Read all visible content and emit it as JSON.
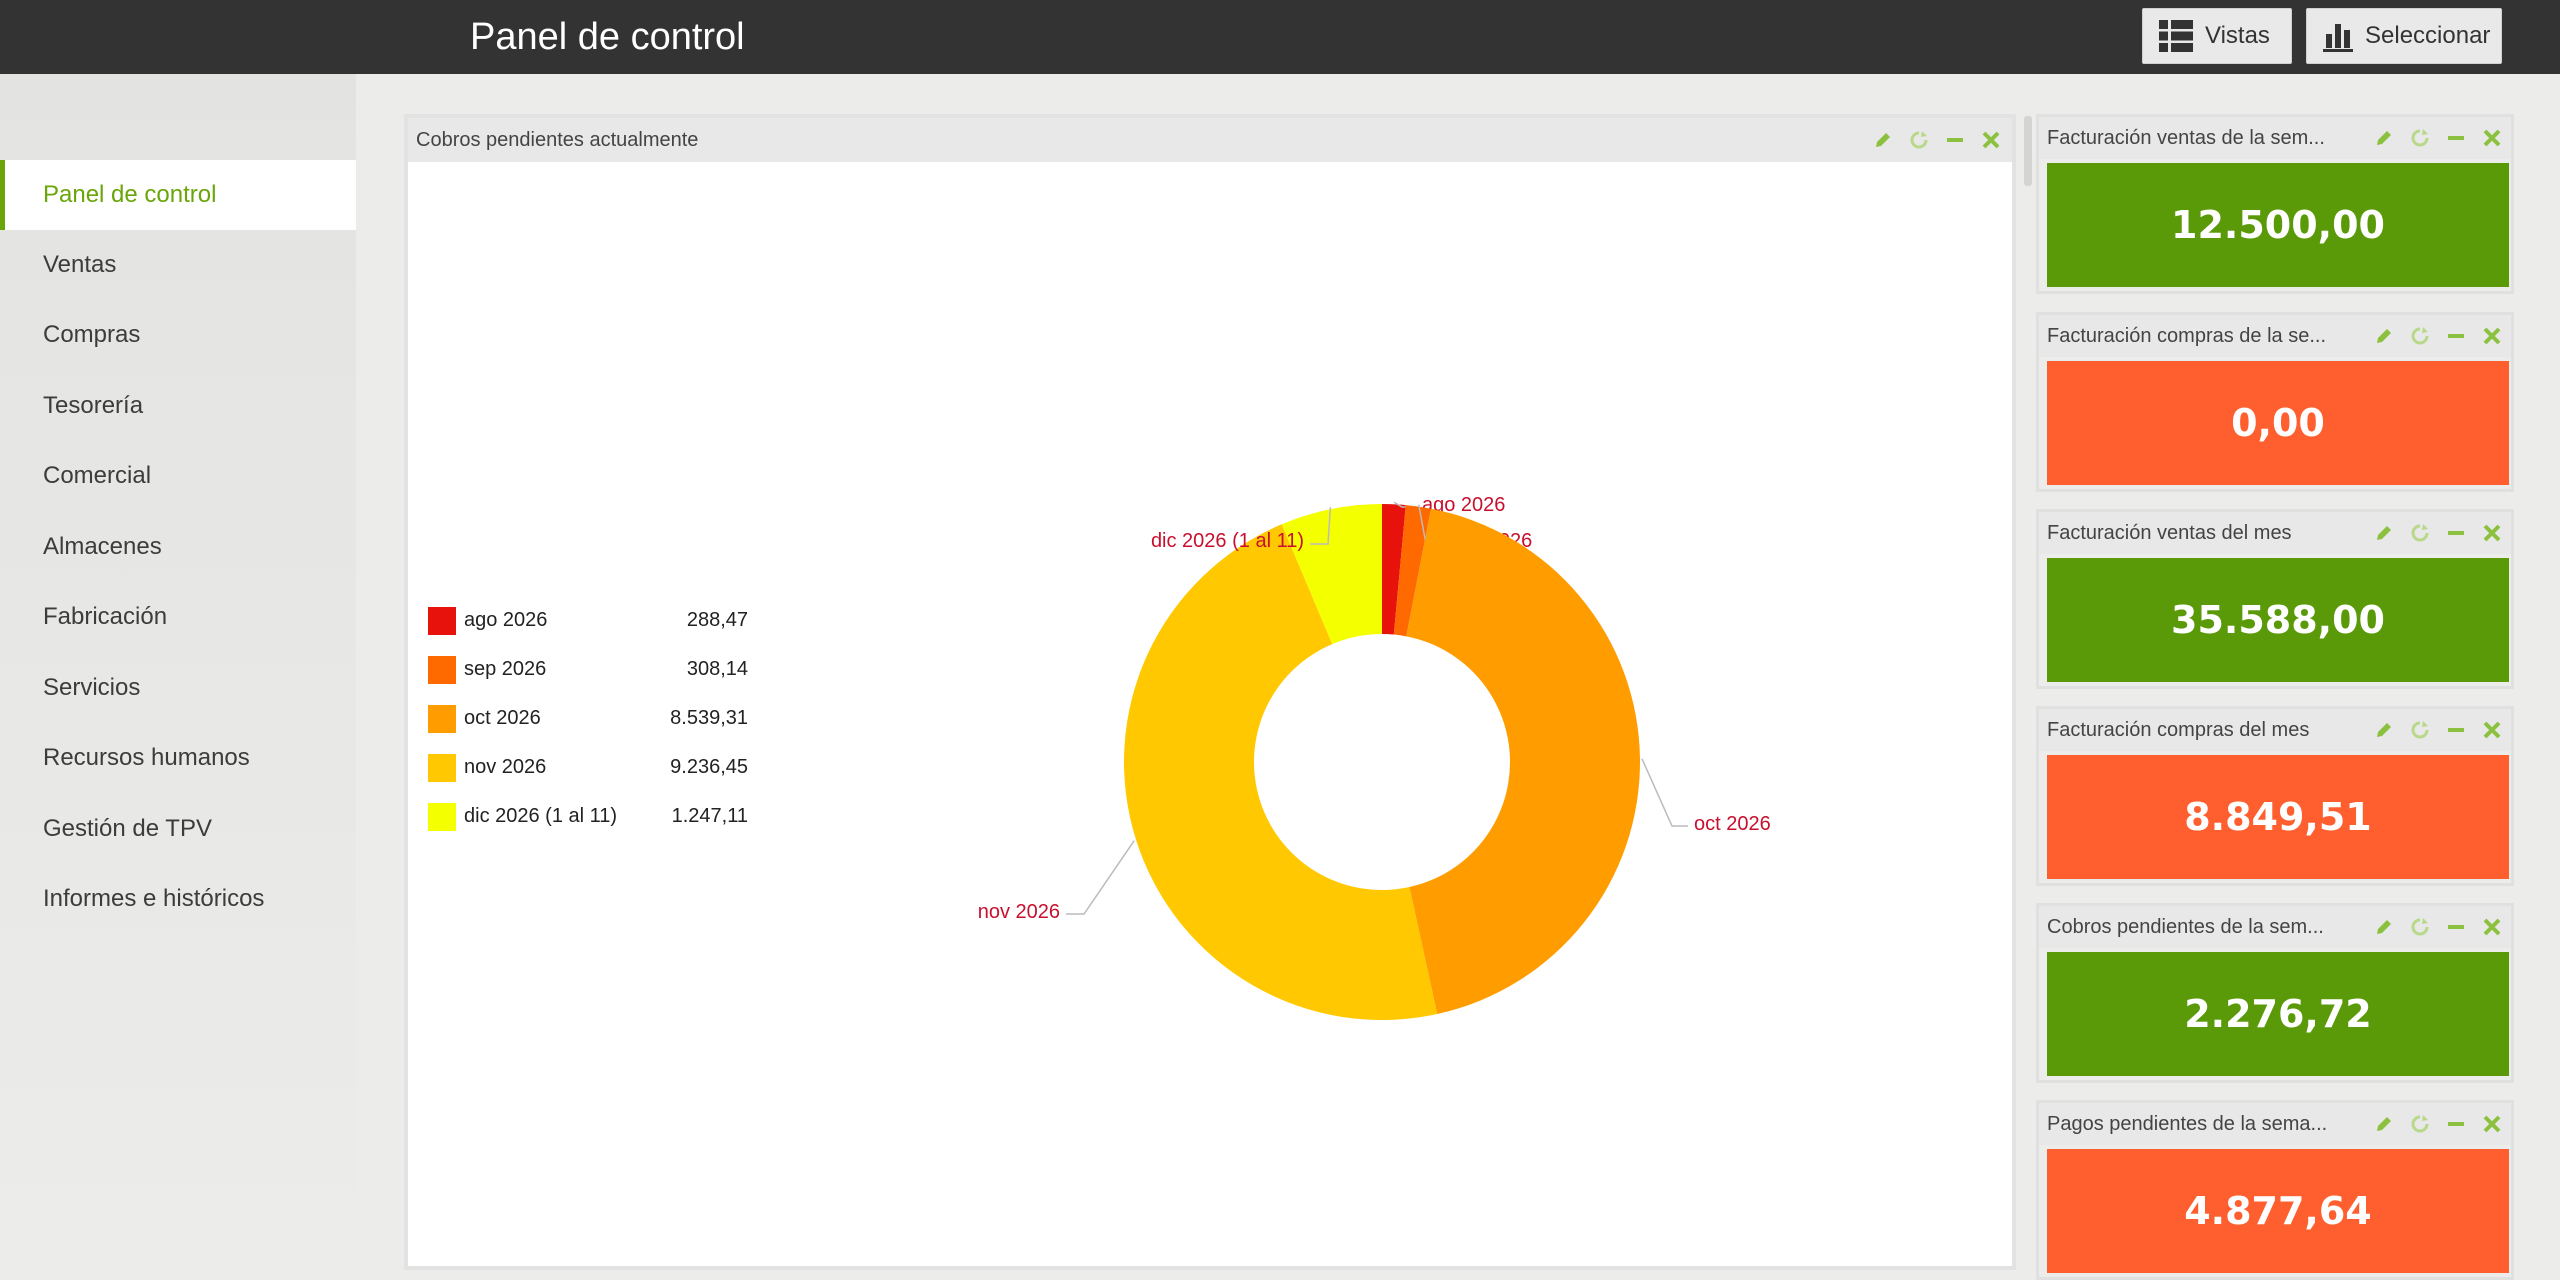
{
  "header": {
    "title": "Panel de control",
    "vistas_label": "Vistas",
    "seleccionar_label": "Seleccionar"
  },
  "sidebar": {
    "items": [
      {
        "label": "Panel de control",
        "active": true
      },
      {
        "label": "Ventas"
      },
      {
        "label": "Compras"
      },
      {
        "label": "Tesorería"
      },
      {
        "label": "Comercial"
      },
      {
        "label": "Almacenes"
      },
      {
        "label": "Fabricación"
      },
      {
        "label": "Servicios"
      },
      {
        "label": "Recursos humanos"
      },
      {
        "label": "Gestión de TPV"
      },
      {
        "label": "Informes e históricos"
      }
    ]
  },
  "main_panel": {
    "title": "Cobros pendientes actualmente"
  },
  "chart_data": {
    "type": "pie",
    "donut": true,
    "categories": [
      "ago 2026",
      "sep 2026",
      "oct 2026",
      "nov 2026",
      "dic 2026 (1 al 11)"
    ],
    "values": [
      288.47,
      308.14,
      8539.31,
      9236.45,
      1247.11
    ],
    "value_labels": [
      "288,47",
      "308,14",
      "8.539,31",
      "9.236,45",
      "1.247,11"
    ],
    "colors": [
      "#e8120c",
      "#ff6a00",
      "#ff9c00",
      "#ffc800",
      "#f4ff00"
    ],
    "legend_position": "left",
    "label_color": "#c8102e"
  },
  "widgets": [
    {
      "title": "Facturación ventas de la sem...",
      "value": "12.500,00",
      "color": "#5a9a08"
    },
    {
      "title": "Facturación compras de la se...",
      "value": "0,00",
      "color": "#ff5f2e"
    },
    {
      "title": "Facturación ventas del mes",
      "value": "35.588,00",
      "color": "#5a9a08"
    },
    {
      "title": "Facturación compras del mes",
      "value": "8.849,51",
      "color": "#ff5f2e"
    },
    {
      "title": "Cobros pendientes de la sem...",
      "value": "2.276,72",
      "color": "#5a9a08"
    },
    {
      "title": "Pagos pendientes de la sema...",
      "value": "4.877,64",
      "color": "#ff5f2e"
    }
  ],
  "icons": {
    "vistas": "grid-icon",
    "seleccionar": "bar-chart-icon",
    "edit": "pencil-icon",
    "refresh": "refresh-icon",
    "minimize": "minus-icon",
    "close": "close-icon"
  },
  "accent_color": "#6aa50a"
}
